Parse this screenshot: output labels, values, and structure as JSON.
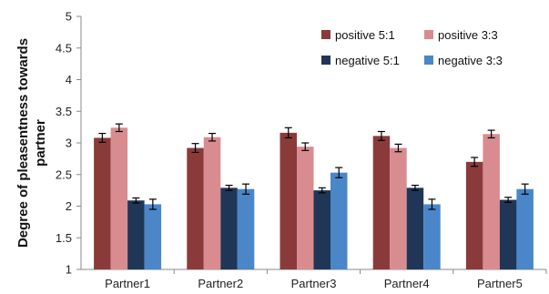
{
  "chart_data": {
    "type": "bar",
    "title": "",
    "xlabel": "",
    "ylabel_line1": "Degree of pleasentness towards",
    "ylabel_line2": "partner",
    "ylim": [
      1,
      5
    ],
    "yticks": [
      "1",
      "1.5",
      "2",
      "2.5",
      "3",
      "3.5",
      "4",
      "4.5",
      "5"
    ],
    "categories": [
      "Partner1",
      "Partner2",
      "Partner3",
      "Partner4",
      "Partner5"
    ],
    "series": [
      {
        "name": "positive 5:1",
        "color": "#8b3a3a",
        "values": [
          3.08,
          2.92,
          3.16,
          3.11,
          2.7
        ],
        "errors": [
          0.07,
          0.07,
          0.08,
          0.07,
          0.07
        ]
      },
      {
        "name": "positive 3:3",
        "color": "#d98c8f",
        "values": [
          3.24,
          3.09,
          2.94,
          2.92,
          3.14
        ],
        "errors": [
          0.06,
          0.06,
          0.06,
          0.06,
          0.06
        ]
      },
      {
        "name": "negative 5:1",
        "color": "#1f3657",
        "values": [
          2.09,
          2.29,
          2.25,
          2.29,
          2.1
        ],
        "errors": [
          0.04,
          0.04,
          0.04,
          0.04,
          0.04
        ]
      },
      {
        "name": "negative 3:3",
        "color": "#4a86c8",
        "values": [
          2.03,
          2.27,
          2.53,
          2.03,
          2.27
        ],
        "errors": [
          0.08,
          0.08,
          0.08,
          0.08,
          0.08
        ]
      }
    ],
    "legend_position": "top-right",
    "grid": false
  }
}
